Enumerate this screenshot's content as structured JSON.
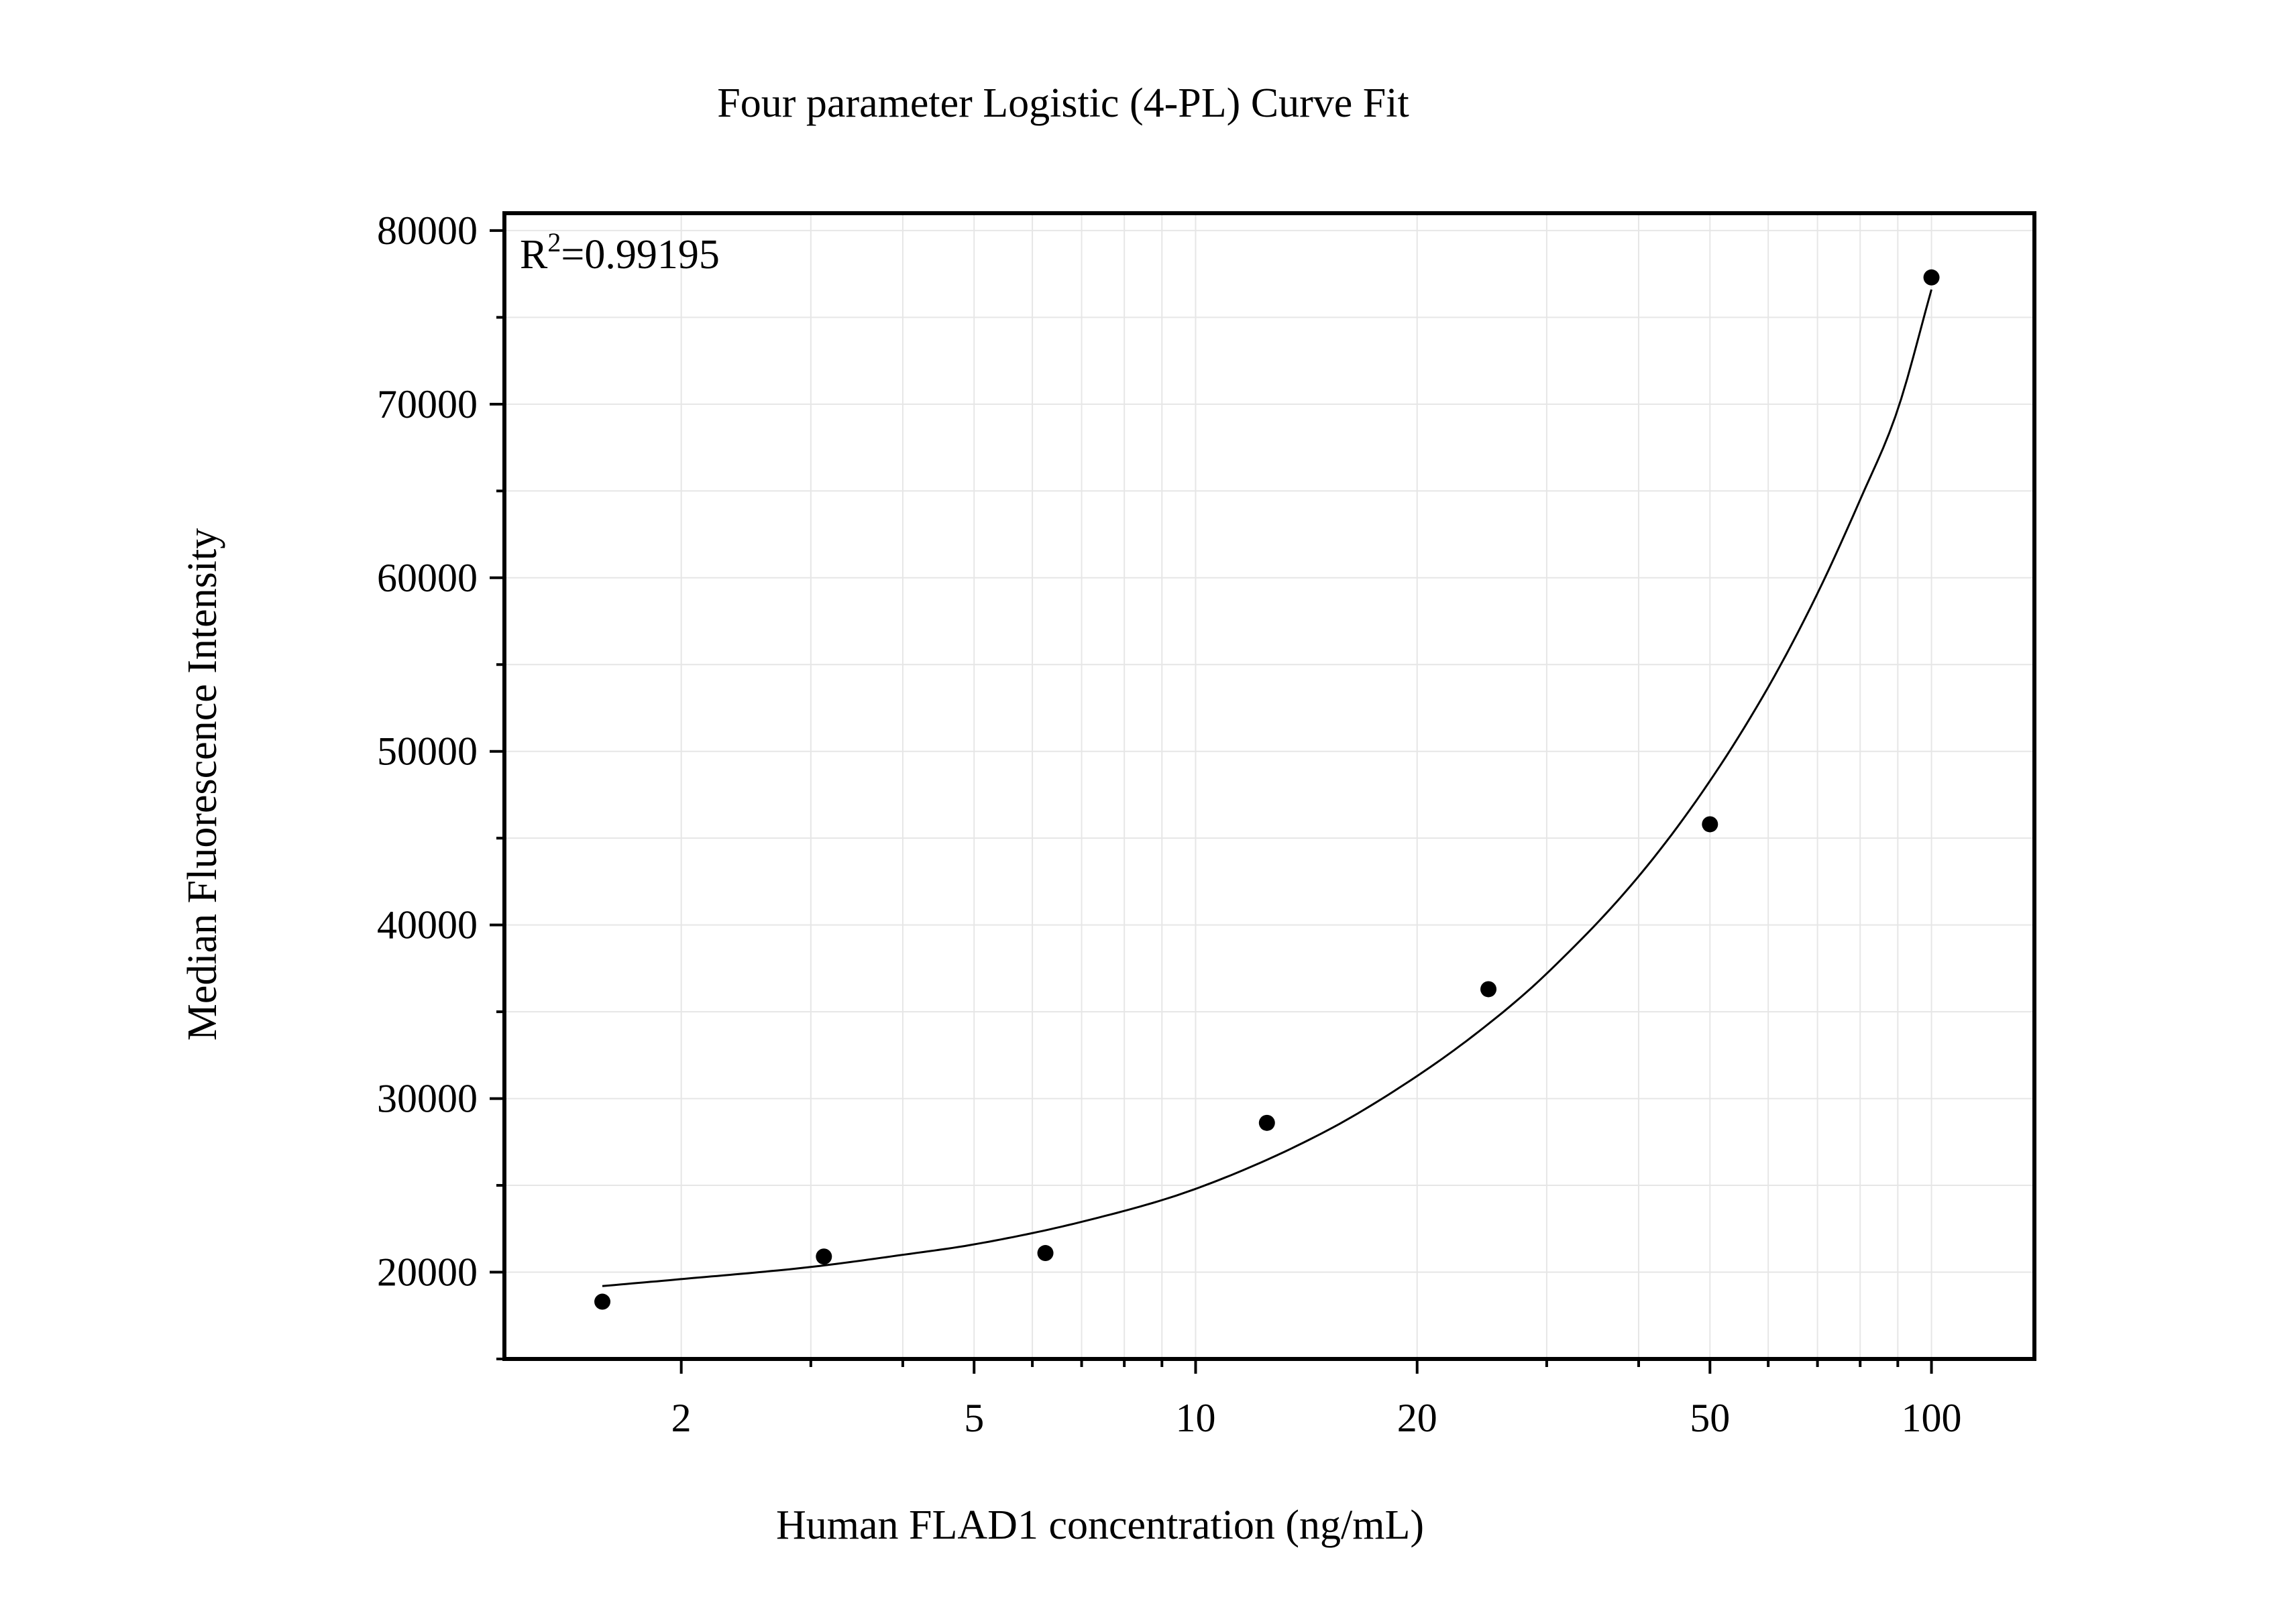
{
  "chart_data": {
    "type": "scatter",
    "title": "Four parameter Logistic (4-PL) Curve Fit",
    "xlabel": "Human FLAD1 concentration (ng/mL)",
    "ylabel": "Median Fluorescence Intensity",
    "annotation": {
      "base": "R",
      "sup": "2",
      "value": "=0.99195"
    },
    "x_scale": "log",
    "xlim": [
      1.15,
      138
    ],
    "ylim": [
      15000,
      81000
    ],
    "x_ticks": [
      {
        "value": 2,
        "label": "2"
      },
      {
        "value": 5,
        "label": "5"
      },
      {
        "value": 10,
        "label": "10"
      },
      {
        "value": 20,
        "label": "20"
      },
      {
        "value": 50,
        "label": "50"
      },
      {
        "value": 100,
        "label": "100"
      }
    ],
    "y_ticks": [
      {
        "value": 20000,
        "label": "20000"
      },
      {
        "value": 30000,
        "label": "30000"
      },
      {
        "value": 40000,
        "label": "40000"
      },
      {
        "value": 50000,
        "label": "50000"
      },
      {
        "value": 60000,
        "label": "60000"
      },
      {
        "value": 70000,
        "label": "70000"
      },
      {
        "value": 80000,
        "label": "80000"
      }
    ],
    "grid": true,
    "series": [
      {
        "kind": "points",
        "x": [
          1.5625,
          3.125,
          6.25,
          12.5,
          25,
          50,
          100
        ],
        "y": [
          18300,
          20900,
          21100,
          28600,
          36300,
          45800,
          77300
        ]
      },
      {
        "kind": "fit",
        "x": [
          1.5625,
          2,
          3,
          4,
          5,
          7,
          10,
          15,
          20,
          25,
          30,
          40,
          50,
          60,
          70,
          80,
          90,
          100
        ],
        "y": [
          19200,
          19600,
          20300,
          21000,
          21600,
          22900,
          24800,
          28100,
          31300,
          34300,
          37200,
          42800,
          48300,
          53700,
          59100,
          64500,
          69700,
          76600
        ]
      }
    ],
    "colors": {
      "points": "#000000",
      "fit": "#000000",
      "grid": "#e6e6e6",
      "axes": "#000000"
    }
  }
}
